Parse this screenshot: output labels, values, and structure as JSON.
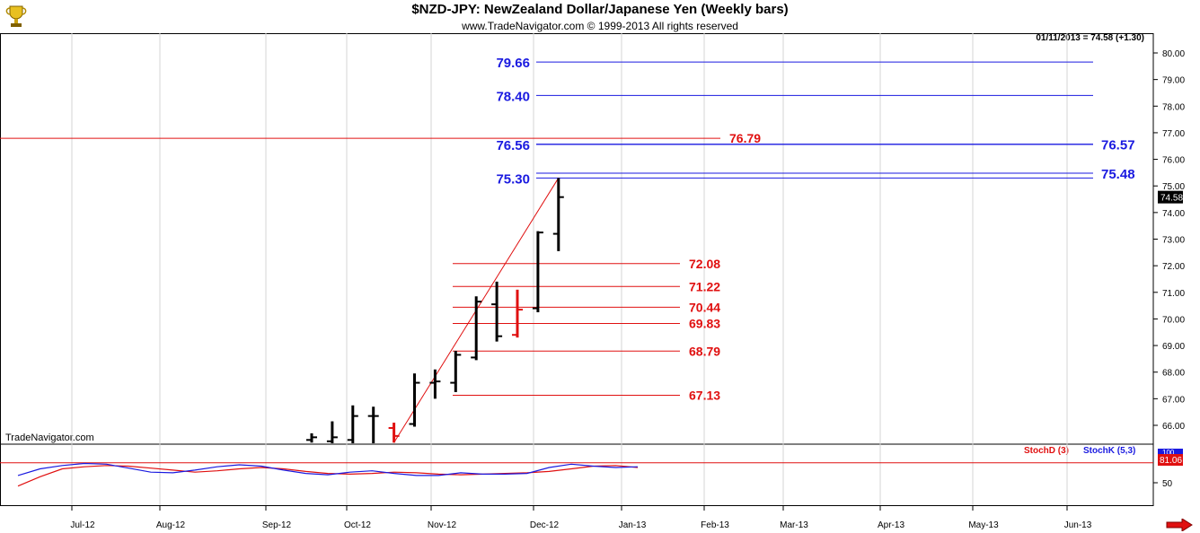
{
  "header": {
    "title": "$NZD-JPY:  NewZealand Dollar/Japanese Yen  (Weekly bars)",
    "subtitle": "www.TradeNavigator.com © 1999-2013 All rights reserved",
    "quote": "01/11/2013 = 74.58 (+1.30)",
    "watermark": "TradeNavigator.com"
  },
  "indicator": {
    "stochd_label": "StochD (3)",
    "stochk_label": "StochK (5,3)",
    "stochd_color": "#e01010",
    "stochk_color": "#1a1ae0",
    "badge_top": "100",
    "badge_value": "81.06",
    "level_label": "50"
  },
  "price_badge": "74.58",
  "logo_icon": "trophy-icon",
  "nav_icon": "right-arrow-icon",
  "chart_data": {
    "type": "bar",
    "title": "$NZD-JPY:  NewZealand Dollar/Japanese Yen  (Weekly bars)",
    "ylim": [
      65.5,
      80.3
    ],
    "y_ticks": [
      "66.00",
      "67.00",
      "68.00",
      "69.00",
      "70.00",
      "71.00",
      "72.00",
      "73.00",
      "74.00",
      "75.00",
      "76.00",
      "77.00",
      "78.00",
      "79.00",
      "80.00"
    ],
    "x_ticks": [
      "Jul-12",
      "Aug-12",
      "Sep-12",
      "Oct-12",
      "Nov-12",
      "Dec-12",
      "Jan-13",
      "Feb-13",
      "Mar-13",
      "Apr-13",
      "May-13",
      "Jun-13"
    ],
    "ohlc": [
      {
        "open": 65.45,
        "high": 65.7,
        "low": 65.35,
        "close": 65.55,
        "color": "#000000"
      },
      {
        "open": 65.4,
        "high": 66.15,
        "low": 65.3,
        "close": 65.55,
        "color": "#000000"
      },
      {
        "open": 65.45,
        "high": 66.75,
        "low": 65.3,
        "close": 66.35,
        "color": "#000000"
      },
      {
        "open": 66.35,
        "high": 66.7,
        "low": 65.3,
        "close": 66.35,
        "color": "#000000"
      },
      {
        "open": 65.9,
        "high": 66.1,
        "low": 65.35,
        "close": 65.6,
        "color": "#e01010"
      },
      {
        "open": 66.05,
        "high": 67.95,
        "low": 65.95,
        "close": 67.6,
        "color": "#000000"
      },
      {
        "open": 67.6,
        "high": 68.1,
        "low": 67.0,
        "close": 67.65,
        "color": "#000000"
      },
      {
        "open": 67.6,
        "high": 68.8,
        "low": 67.25,
        "close": 68.65,
        "color": "#000000"
      },
      {
        "open": 68.55,
        "high": 70.85,
        "low": 68.45,
        "close": 70.65,
        "color": "#000000"
      },
      {
        "open": 70.55,
        "high": 71.4,
        "low": 69.15,
        "close": 69.35,
        "color": "#000000"
      },
      {
        "open": 69.4,
        "high": 71.1,
        "low": 69.3,
        "close": 70.35,
        "color": "#e01010"
      },
      {
        "open": 70.4,
        "high": 73.3,
        "low": 70.25,
        "close": 73.25,
        "color": "#000000"
      },
      {
        "open": 73.2,
        "high": 75.3,
        "low": 72.55,
        "close": 74.58,
        "color": "#000000"
      }
    ],
    "fib_red_levels": [
      72.08,
      71.22,
      70.44,
      69.83,
      68.79,
      67.13
    ],
    "fib_red_labels": [
      "72.08",
      "71.22",
      "70.44",
      "69.83",
      "68.79",
      "67.13"
    ],
    "resistance_red": {
      "value": 76.79,
      "label": "76.79"
    },
    "fib_blue_left": [
      {
        "value": 79.66,
        "label": "79.66"
      },
      {
        "value": 78.4,
        "label": "78.40"
      },
      {
        "value": 76.56,
        "label": "76.56"
      },
      {
        "value": 75.3,
        "label": "75.30"
      }
    ],
    "fib_blue_right": [
      {
        "value": 76.57,
        "label": "76.57"
      },
      {
        "value": 75.48,
        "label": "75.48"
      }
    ],
    "trendline": {
      "from": 65.35,
      "to": 75.3
    },
    "stoch_ylim": [
      40,
      104
    ],
    "stochK": [
      61,
      71,
      76,
      79,
      78,
      72,
      66,
      65,
      69,
      74,
      77,
      75,
      69,
      64,
      62,
      66,
      68,
      64,
      61,
      61,
      65,
      63,
      63,
      64,
      73,
      78,
      75,
      73,
      74
    ],
    "stochD": [
      45,
      59,
      71,
      74,
      76,
      75,
      72,
      69,
      66,
      68,
      71,
      73,
      71,
      67,
      64,
      63,
      64,
      66,
      65,
      63,
      62,
      63,
      64,
      65,
      67,
      71,
      75,
      76,
      73
    ]
  }
}
